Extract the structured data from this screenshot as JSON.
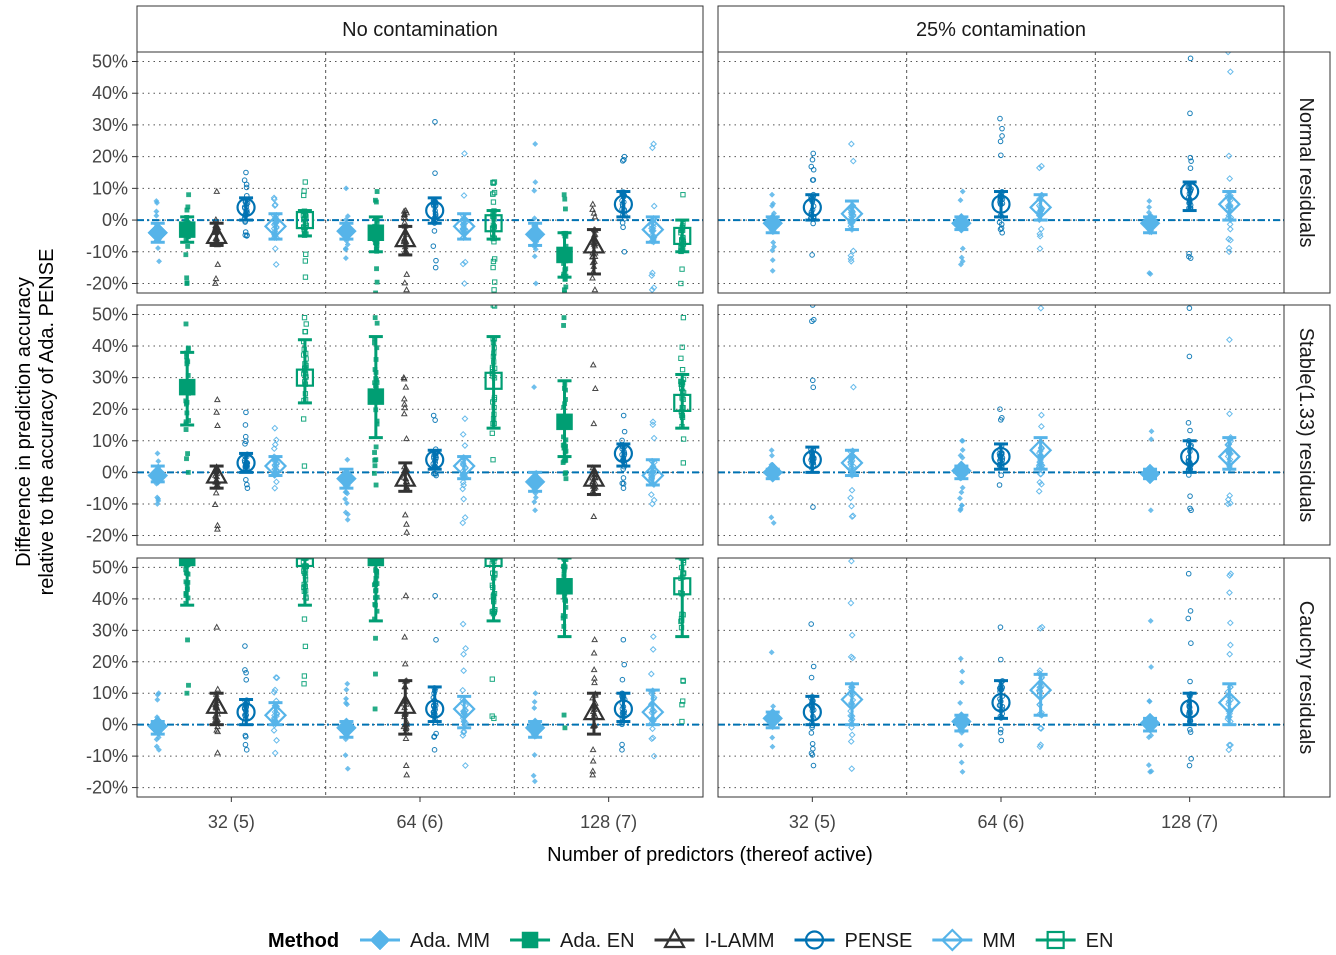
{
  "chart_data": {
    "type": "scatter",
    "title": "",
    "xlabel": "Number of predictors (thereof active)",
    "ylabel_lines": [
      "Difference in prediction accuracy",
      "relative to the accuracy of Ada. PENSE"
    ],
    "column_facets": [
      "No contamination",
      "25% contamination"
    ],
    "row_facets": [
      "Normal residuals",
      "Stable(1.33) residuals",
      "Cauchy residuals"
    ],
    "categories": [
      "32 (5)",
      "64 (6)",
      "128 (7)"
    ],
    "y_ticks": [
      "50%",
      "40%",
      "30%",
      "20%",
      "10%",
      "0%",
      "-10%",
      "-20%"
    ],
    "ylim": [
      -0.23,
      0.53
    ],
    "reference_line": 0,
    "legend": {
      "title": "Method",
      "position": "bottom"
    },
    "methods": [
      {
        "name": "Ada. MM",
        "color": "#56b4e9",
        "shape": "diamond",
        "filled": true
      },
      {
        "name": "Ada. EN",
        "color": "#009e73",
        "shape": "square",
        "filled": true
      },
      {
        "name": "I-LAMM",
        "color": "#333333",
        "shape": "triangle",
        "filled": false
      },
      {
        "name": "PENSE",
        "color": "#0072b2",
        "shape": "circle",
        "filled": false
      },
      {
        "name": "MM",
        "color": "#56b4e9",
        "shape": "diamond",
        "filled": false
      },
      {
        "name": "EN",
        "color": "#009e73",
        "shape": "square",
        "filled": false
      }
    ],
    "series_methods_no_contamination": [
      0,
      1,
      2,
      3,
      4,
      5
    ],
    "series_methods_contamination": [
      0,
      3,
      4
    ],
    "panels": [
      {
        "row": 0,
        "col": 0,
        "groups": [
          [
            [
              -0.04,
              -0.07,
              -0.01,
              -0.13,
              0.06
            ],
            [
              -0.03,
              -0.07,
              0.01,
              -0.2,
              0.08
            ],
            [
              -0.05,
              -0.08,
              -0.01,
              -0.2,
              0.09
            ],
            [
              0.04,
              0.0,
              0.07,
              -0.05,
              0.15
            ],
            [
              -0.02,
              -0.06,
              0.02,
              -0.14,
              0.07
            ],
            [
              0.0,
              -0.05,
              0.03,
              -0.18,
              0.12
            ]
          ],
          [
            [
              -0.035,
              -0.06,
              -0.01,
              -0.12,
              0.1
            ],
            [
              -0.04,
              -0.1,
              0.01,
              -0.23,
              0.09
            ],
            [
              -0.06,
              -0.11,
              -0.02,
              -0.22,
              0.03
            ],
            [
              0.03,
              -0.01,
              0.07,
              -0.15,
              0.31
            ],
            [
              -0.02,
              -0.06,
              0.02,
              -0.2,
              0.21
            ],
            [
              -0.01,
              -0.06,
              0.03,
              -0.22,
              0.12
            ]
          ],
          [
            [
              -0.045,
              -0.08,
              -0.01,
              -0.2,
              0.24
            ],
            [
              -0.11,
              -0.18,
              -0.04,
              -0.23,
              0.08
            ],
            [
              -0.08,
              -0.17,
              -0.03,
              -0.22,
              0.05
            ],
            [
              0.05,
              0.01,
              0.09,
              -0.1,
              0.2
            ],
            [
              -0.03,
              -0.07,
              0.01,
              -0.22,
              0.24
            ],
            [
              -0.05,
              -0.1,
              0.0,
              -0.2,
              0.08
            ]
          ]
        ]
      },
      {
        "row": 0,
        "col": 1,
        "groups": [
          [
            [
              -0.01,
              -0.04,
              0.01,
              -0.16,
              0.08
            ],
            [
              0.04,
              0.0,
              0.08,
              -0.11,
              0.21
            ],
            [
              0.02,
              -0.03,
              0.06,
              -0.13,
              0.24
            ]
          ],
          [
            [
              -0.01,
              -0.03,
              0.01,
              -0.14,
              0.09
            ],
            [
              0.05,
              0.01,
              0.09,
              -0.04,
              0.32
            ],
            [
              0.04,
              0.0,
              0.08,
              -0.09,
              0.17
            ]
          ],
          [
            [
              -0.01,
              -0.04,
              0.01,
              -0.17,
              0.06
            ],
            [
              0.09,
              0.03,
              0.12,
              -0.12,
              0.51
            ],
            [
              0.05,
              0.0,
              0.09,
              -0.1,
              0.53
            ]
          ]
        ]
      },
      {
        "row": 1,
        "col": 0,
        "groups": [
          [
            [
              -0.01,
              -0.03,
              0.02,
              -0.1,
              0.06
            ],
            [
              0.27,
              0.15,
              0.38,
              0.0,
              0.47
            ],
            [
              -0.01,
              -0.05,
              0.02,
              -0.18,
              0.23
            ],
            [
              0.03,
              0.0,
              0.06,
              -0.05,
              0.19
            ],
            [
              0.02,
              -0.01,
              0.05,
              -0.05,
              0.14
            ],
            [
              0.3,
              0.22,
              0.42,
              0.02,
              0.49
            ]
          ],
          [
            [
              -0.02,
              -0.05,
              0.01,
              -0.15,
              0.04
            ],
            [
              0.24,
              0.11,
              0.43,
              -0.04,
              0.49
            ],
            [
              -0.02,
              -0.06,
              0.03,
              -0.19,
              0.3
            ],
            [
              0.04,
              0.01,
              0.07,
              -0.01,
              0.18
            ],
            [
              0.02,
              -0.02,
              0.05,
              -0.16,
              0.17
            ],
            [
              0.29,
              0.14,
              0.43,
              0.04,
              0.53
            ]
          ],
          [
            [
              -0.03,
              -0.06,
              0.0,
              -0.12,
              0.27
            ],
            [
              0.16,
              0.05,
              0.29,
              -0.02,
              0.49
            ],
            [
              -0.02,
              -0.07,
              0.02,
              -0.14,
              0.34
            ],
            [
              0.06,
              0.02,
              0.09,
              -0.05,
              0.18
            ],
            [
              -0.01,
              -0.04,
              0.04,
              -0.1,
              0.16
            ],
            [
              0.22,
              0.14,
              0.31,
              0.03,
              0.49
            ]
          ]
        ]
      },
      {
        "row": 1,
        "col": 1,
        "groups": [
          [
            [
              0.0,
              -0.02,
              0.01,
              -0.16,
              0.07
            ],
            [
              0.04,
              0.0,
              0.08,
              -0.11,
              0.53
            ],
            [
              0.03,
              -0.01,
              0.07,
              -0.14,
              0.27
            ]
          ],
          [
            [
              0.005,
              -0.02,
              0.02,
              -0.12,
              0.1
            ],
            [
              0.05,
              0.01,
              0.09,
              -0.04,
              0.2
            ],
            [
              0.07,
              0.01,
              0.11,
              -0.06,
              0.52
            ]
          ],
          [
            [
              -0.005,
              -0.02,
              0.01,
              -0.12,
              0.13
            ],
            [
              0.05,
              0.0,
              0.1,
              -0.12,
              0.52
            ],
            [
              0.05,
              0.01,
              0.11,
              -0.1,
              0.42
            ]
          ]
        ]
      },
      {
        "row": 2,
        "col": 0,
        "groups": [
          [
            [
              -0.005,
              -0.03,
              0.01,
              -0.08,
              0.1
            ],
            [
              0.53,
              0.38,
              0.53,
              0.1,
              0.53
            ],
            [
              0.06,
              0.0,
              0.1,
              -0.09,
              0.31
            ],
            [
              0.04,
              0.0,
              0.08,
              -0.08,
              0.25
            ],
            [
              0.03,
              0.0,
              0.07,
              -0.09,
              0.15
            ],
            [
              0.53,
              0.38,
              0.53,
              0.13,
              0.53
            ]
          ],
          [
            [
              -0.01,
              -0.04,
              0.01,
              -0.14,
              0.13
            ],
            [
              0.53,
              0.33,
              0.53,
              0.05,
              0.53
            ],
            [
              0.06,
              -0.03,
              0.14,
              -0.16,
              0.41
            ],
            [
              0.05,
              0.01,
              0.12,
              -0.08,
              0.41
            ],
            [
              0.05,
              -0.01,
              0.09,
              -0.13,
              0.32
            ],
            [
              0.53,
              0.33,
              0.53,
              0.02,
              0.53
            ]
          ],
          [
            [
              -0.01,
              -0.04,
              0.01,
              -0.18,
              0.1
            ],
            [
              0.44,
              0.28,
              0.53,
              -0.01,
              0.53
            ],
            [
              0.04,
              -0.03,
              0.1,
              -0.16,
              0.27
            ],
            [
              0.05,
              0.01,
              0.1,
              -0.08,
              0.27
            ],
            [
              0.04,
              0.0,
              0.11,
              -0.1,
              0.28
            ],
            [
              0.44,
              0.28,
              0.53,
              0.01,
              0.53
            ]
          ]
        ]
      },
      {
        "row": 2,
        "col": 1,
        "groups": [
          [
            [
              0.02,
              -0.01,
              0.04,
              -0.07,
              0.23
            ],
            [
              0.04,
              0.0,
              0.09,
              -0.13,
              0.32
            ],
            [
              0.08,
              0.0,
              0.13,
              -0.14,
              0.52
            ]
          ],
          [
            [
              0.01,
              -0.02,
              0.03,
              -0.15,
              0.21
            ],
            [
              0.07,
              0.02,
              0.14,
              -0.05,
              0.31
            ],
            [
              0.11,
              0.03,
              0.16,
              -0.07,
              0.31
            ]
          ],
          [
            [
              0.005,
              -0.02,
              0.02,
              -0.15,
              0.33
            ],
            [
              0.05,
              0.0,
              0.1,
              -0.13,
              0.48
            ],
            [
              0.07,
              0.0,
              0.13,
              -0.08,
              0.48
            ]
          ]
        ]
      }
    ]
  }
}
